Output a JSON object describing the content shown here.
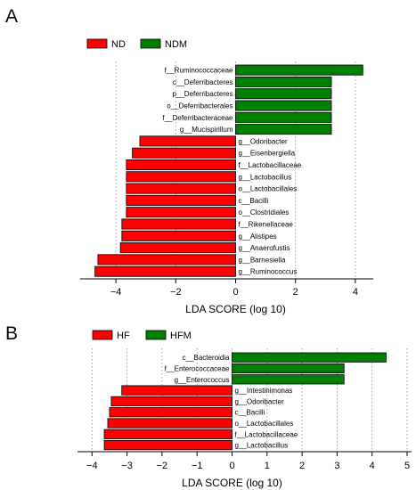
{
  "chart_data": [
    {
      "type": "bar",
      "orientation": "horizontal",
      "panel_label": "A",
      "xlabel": "LDA SCORE (log 10)",
      "xlim": [
        -4.7,
        4.7
      ],
      "xticks": [
        -4,
        -2,
        0,
        2,
        4
      ],
      "xtick_labels": [
        "−4",
        "−2",
        "0",
        "2",
        "4"
      ],
      "grid": "vertical dotted",
      "legend": [
        {
          "name": "ND",
          "color": "#ff0000"
        },
        {
          "name": "NDM",
          "color": "#008000"
        }
      ],
      "categories": [
        "f__Ruminococcaceae",
        "c__Deferribacteres",
        "p__Deferribacteres",
        "o__Deferribacterales",
        "f__Deferribacteraceae",
        "g__Mucispirillum",
        "g__Odoribacter",
        "g__Eisenbergiella",
        "f__Lactobacillaceae",
        "g__Lactobacillus",
        "o__Lactobacillales",
        "c__Bacilli",
        "o__Clostridiales",
        "f__Rikenellaceae",
        "g__Alistipes",
        "g__Anaerofustis",
        "g__Barnesiella",
        "g__Ruminococcus"
      ],
      "values": [
        4.25,
        3.2,
        3.2,
        3.2,
        3.2,
        3.2,
        -3.2,
        -3.45,
        -3.65,
        -3.65,
        -3.65,
        -3.65,
        -3.65,
        -3.8,
        -3.8,
        -3.85,
        -4.6,
        -4.7
      ],
      "groups": [
        "NDM",
        "NDM",
        "NDM",
        "NDM",
        "NDM",
        "NDM",
        "ND",
        "ND",
        "ND",
        "ND",
        "ND",
        "ND",
        "ND",
        "ND",
        "ND",
        "ND",
        "ND",
        "ND"
      ]
    },
    {
      "type": "bar",
      "orientation": "horizontal",
      "panel_label": "B",
      "xlabel": "LDA SCORE (log 10)",
      "xlim": [
        -4.3,
        5.0
      ],
      "xticks": [
        -4,
        -3,
        -2,
        -1,
        0,
        1,
        2,
        3,
        4,
        5
      ],
      "xtick_labels": [
        "−4",
        "−3",
        "−2",
        "−1",
        "0",
        "1",
        "2",
        "3",
        "4",
        "5"
      ],
      "grid": "vertical dotted",
      "legend": [
        {
          "name": "HF",
          "color": "#ff0000"
        },
        {
          "name": "HFM",
          "color": "#008000"
        }
      ],
      "categories": [
        "c__Bacteroidia",
        "f__Enterococcaceae",
        "g__Enterococcus",
        "g__Intestinimonas",
        "g__Odoribacter",
        "c__Bacilli",
        "o__Lactobacillales",
        "f__Lactobacillaceae",
        "g__Lactobacillus"
      ],
      "values": [
        4.4,
        3.2,
        3.2,
        -3.15,
        -3.45,
        -3.5,
        -3.55,
        -3.65,
        -3.65
      ],
      "groups": [
        "HFM",
        "HFM",
        "HFM",
        "HF",
        "HF",
        "HF",
        "HF",
        "HF",
        "HF"
      ]
    }
  ]
}
